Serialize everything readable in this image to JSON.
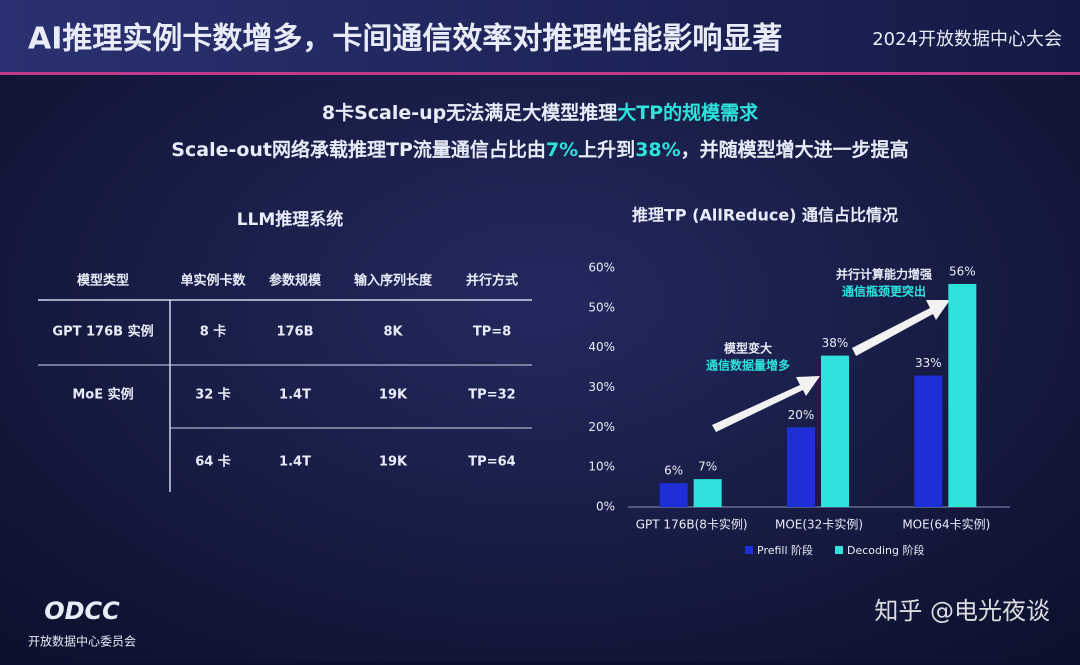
{
  "header": {
    "title": "AI推理实例卡数增多，卡间通信效率对推理性能影响显著",
    "event": "2024开放数据中心大会"
  },
  "subtitle": {
    "line1": [
      "8卡Scale-up无法满足大模型推理",
      "大TP的规模需求"
    ],
    "line2": [
      "Scale-out网络承载推理TP流量通信占比由",
      "7%",
      "上升到",
      "38%",
      "，并随模型增大进一步提高"
    ]
  },
  "table": {
    "title": "LLM推理系统",
    "headers": [
      "模型类型",
      "单实例卡数",
      "参数规模",
      "输入序列长度",
      "并行方式"
    ],
    "rows": [
      [
        "GPT 176B 实例",
        "8 卡",
        "176B",
        "8K",
        "TP=8"
      ],
      [
        "MoE 实例",
        "32 卡",
        "1.4T",
        "19K",
        "TP=32"
      ],
      [
        null,
        "64 卡",
        "1.4T",
        "19K",
        "TP=64"
      ]
    ]
  },
  "chart_data": {
    "type": "bar",
    "title": "推理TP (AllReduce) 通信占比情况",
    "categories": [
      "GPT 176B(8卡实例)",
      "MOE(32卡实例)",
      "MOE(64卡实例)"
    ],
    "series": [
      {
        "name": "Prefill 阶段",
        "color": "#1f2fd8",
        "values": [
          6,
          20,
          33
        ],
        "value_labels": [
          "6%",
          "20%",
          "33%"
        ]
      },
      {
        "name": "Decoding 阶段",
        "color": "#2ee3dc",
        "values": [
          7,
          38,
          56
        ],
        "value_labels": [
          "7%",
          "38%",
          "56%"
        ]
      }
    ],
    "ylim": [
      0,
      60
    ],
    "yticks": [
      {
        "value": 0,
        "label": "0%"
      },
      {
        "value": 10,
        "label": "10%"
      },
      {
        "value": 20,
        "label": "20%"
      },
      {
        "value": 30,
        "label": "30%"
      },
      {
        "value": 40,
        "label": "40%"
      },
      {
        "value": 50,
        "label": "50%"
      },
      {
        "value": 60,
        "label": "60%"
      }
    ],
    "annotations": [
      [
        "模型变大",
        "通信数据量增多"
      ],
      [
        "并行计算能力增强",
        "通信瓶颈更突出"
      ]
    ]
  },
  "footer": {
    "logo": "ODCC",
    "org": "开放数据中心委员会",
    "watermark": "知乎 @电光夜谈"
  }
}
